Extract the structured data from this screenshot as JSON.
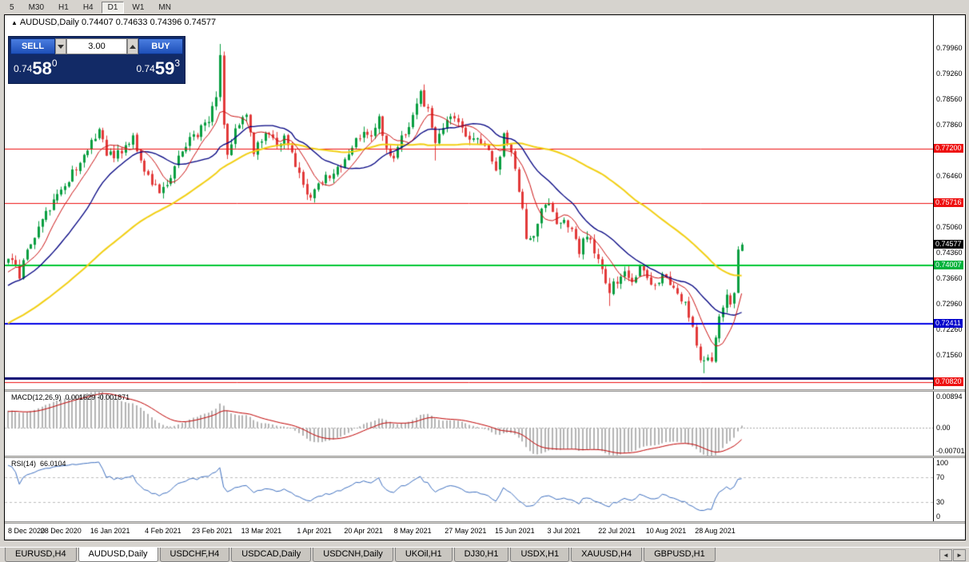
{
  "toolbar": {
    "periods": [
      {
        "label": "5",
        "active": false
      },
      {
        "label": "M30",
        "active": false
      },
      {
        "label": "H1",
        "active": false
      },
      {
        "label": "H4",
        "active": false
      },
      {
        "label": "D1",
        "active": true
      },
      {
        "label": "W1",
        "active": false
      },
      {
        "label": "MN",
        "active": false
      }
    ]
  },
  "chart": {
    "symbol_marker": "▲",
    "title": "AUDUSD,Daily",
    "ohlc": "0.74407 0.74633 0.74396 0.74577"
  },
  "trade_widget": {
    "sell_label": "SELL",
    "buy_label": "BUY",
    "lot_value": "3.00",
    "sell_price": {
      "main": "0.74",
      "big": "58",
      "sup": "0"
    },
    "buy_price": {
      "main": "0.74",
      "big": "59",
      "sup": "3"
    }
  },
  "price_axis": {
    "labels": [
      "0.79960",
      "0.79260",
      "0.78560",
      "0.77860",
      "0.77160",
      "0.76460",
      "0.75760",
      "0.75060",
      "0.74360",
      "0.73660",
      "0.72960",
      "0.72260",
      "0.71560"
    ],
    "markers": [
      {
        "text": "0.77200",
        "price": 0.772,
        "bg": "#ee1111",
        "fg": "#ffffff"
      },
      {
        "text": "0.75716",
        "price": 0.75716,
        "bg": "#ee1111",
        "fg": "#ffffff"
      },
      {
        "text": "0.74577",
        "price": 0.74577,
        "bg": "#000000",
        "fg": "#ffffff",
        "current": true
      },
      {
        "text": "0.74007",
        "price": 0.74007,
        "bg": "#00b33c",
        "fg": "#ffffff"
      },
      {
        "text": "0.72411",
        "price": 0.72411,
        "bg": "#0000cc",
        "fg": "#ffffff"
      },
      {
        "text": "0.70820",
        "price": 0.7082,
        "bg": "#ee1111",
        "fg": "#ffffff"
      }
    ]
  },
  "hlines": [
    {
      "price": 0.772,
      "color": "#ee1111",
      "width": 1
    },
    {
      "price": 0.75716,
      "color": "#ee1111",
      "width": 1
    },
    {
      "price": 0.74007,
      "color": "#00c832",
      "width": 2
    },
    {
      "price": 0.72411,
      "color": "#0000e6",
      "width": 2
    },
    {
      "price": 0.7092,
      "color": "#000070",
      "width": 3
    },
    {
      "price": 0.7082,
      "color": "#ee1111",
      "width": 1
    }
  ],
  "macd": {
    "label": "MACD(12,26,9)",
    "values": "0.001629 -0.001871",
    "axis": [
      "0.00894",
      "0.00",
      "-0.00701"
    ]
  },
  "rsi": {
    "label": "RSI(14)",
    "value": "66.0104",
    "axis": [
      "100",
      "70",
      "30",
      "0"
    ]
  },
  "time_axis": {
    "labels": [
      {
        "text": "8 Dec 2020",
        "day": 0
      },
      {
        "text": "28 Dec 2020",
        "day": 14
      },
      {
        "text": "16 Jan 2021",
        "day": 27
      },
      {
        "text": "4 Feb 2021",
        "day": 41
      },
      {
        "text": "23 Feb 2021",
        "day": 54
      },
      {
        "text": "13 Mar 2021",
        "day": 67
      },
      {
        "text": "1 Apr 2021",
        "day": 81
      },
      {
        "text": "20 Apr 2021",
        "day": 94
      },
      {
        "text": "8 May 2021",
        "day": 107
      },
      {
        "text": "27 May 2021",
        "day": 121
      },
      {
        "text": "15 Jun 2021",
        "day": 134
      },
      {
        "text": "3 Jul 2021",
        "day": 147
      },
      {
        "text": "22 Jul 2021",
        "day": 161
      },
      {
        "text": "10 Aug 2021",
        "day": 174
      },
      {
        "text": "28 Aug 2021",
        "day": 187
      }
    ]
  },
  "tabbar": {
    "left_arrow": "◄",
    "right_arrow": "►"
  },
  "tabs": [
    {
      "label": "EURUSD,H4",
      "active": false
    },
    {
      "label": "AUDUSD,Daily",
      "active": true
    },
    {
      "label": "USDCHF,H4",
      "active": false
    },
    {
      "label": "USDCAD,Daily",
      "active": false
    },
    {
      "label": "USDCNH,Daily",
      "active": false
    },
    {
      "label": "UKOil,H1",
      "active": false
    },
    {
      "label": "DJ30,H1",
      "active": false
    },
    {
      "label": "USDX,H1",
      "active": false
    },
    {
      "label": "XAUUSD,H4",
      "active": false
    },
    {
      "label": "GBPUSD,H1",
      "active": false
    }
  ],
  "chart_data": {
    "type": "candlestick",
    "symbol": "AUDUSD",
    "timeframe": "Daily",
    "last_candle_ohlc": {
      "open": 0.74407,
      "high": 0.74633,
      "low": 0.74396,
      "close": 0.74577
    },
    "up_color": "#089e40",
    "down_color": "#e23a3a",
    "macd_hist_color": "#b4b4b4",
    "macd_signal_color": "#c00000",
    "rsi_color": "#3d6fc0",
    "seed": 20210903,
    "noise": 0.0011,
    "wick": 0.0016,
    "prehistory_anchors": [
      [
        -60,
        0.704
      ],
      [
        -45,
        0.7128
      ],
      [
        -30,
        0.7235
      ],
      [
        -15,
        0.7312
      ],
      [
        -5,
        0.7368
      ],
      [
        -1,
        0.7408
      ]
    ],
    "price_anchors": [
      [
        0,
        0.7415
      ],
      [
        2,
        0.7398
      ],
      [
        3,
        0.7372
      ],
      [
        5,
        0.7438
      ],
      [
        8,
        0.7508
      ],
      [
        11,
        0.756
      ],
      [
        14,
        0.7602
      ],
      [
        17,
        0.7658
      ],
      [
        20,
        0.77
      ],
      [
        22,
        0.7748
      ],
      [
        24,
        0.7768
      ],
      [
        26,
        0.7712
      ],
      [
        28,
        0.7698
      ],
      [
        31,
        0.7722
      ],
      [
        33,
        0.7748
      ],
      [
        35,
        0.7682
      ],
      [
        38,
        0.7632
      ],
      [
        40,
        0.7598
      ],
      [
        42,
        0.7612
      ],
      [
        44,
        0.7672
      ],
      [
        47,
        0.7732
      ],
      [
        50,
        0.7762
      ],
      [
        53,
        0.7802
      ],
      [
        55,
        0.7872
      ],
      [
        56,
        0.7985
      ],
      [
        57,
        0.7782
      ],
      [
        58,
        0.7712
      ],
      [
        60,
        0.7772
      ],
      [
        63,
        0.7822
      ],
      [
        65,
        0.7712
      ],
      [
        67,
        0.7742
      ],
      [
        69,
        0.7762
      ],
      [
        71,
        0.7732
      ],
      [
        73,
        0.7756
      ],
      [
        75,
        0.7702
      ],
      [
        77,
        0.7648
      ],
      [
        79,
        0.7592
      ],
      [
        81,
        0.7602
      ],
      [
        83,
        0.7632
      ],
      [
        86,
        0.7652
      ],
      [
        89,
        0.7682
      ],
      [
        91,
        0.7722
      ],
      [
        94,
        0.7772
      ],
      [
        96,
        0.7752
      ],
      [
        98,
        0.7798
      ],
      [
        100,
        0.7718
      ],
      [
        102,
        0.7702
      ],
      [
        104,
        0.7748
      ],
      [
        106,
        0.7782
      ],
      [
        108,
        0.7842
      ],
      [
        109,
        0.7868
      ],
      [
        111,
        0.7822
      ],
      [
        113,
        0.7732
      ],
      [
        115,
        0.7782
      ],
      [
        117,
        0.7812
      ],
      [
        119,
        0.7792
      ],
      [
        121,
        0.7748
      ],
      [
        123,
        0.7738
      ],
      [
        125,
        0.7742
      ],
      [
        127,
        0.7722
      ],
      [
        129,
        0.7662
      ],
      [
        131,
        0.7752
      ],
      [
        133,
        0.7712
      ],
      [
        135,
        0.7612
      ],
      [
        137,
        0.7482
      ],
      [
        139,
        0.7478
      ],
      [
        141,
        0.7562
      ],
      [
        143,
        0.7582
      ],
      [
        145,
        0.7522
      ],
      [
        147,
        0.7528
      ],
      [
        149,
        0.7492
      ],
      [
        151,
        0.7442
      ],
      [
        153,
        0.7488
      ],
      [
        155,
        0.7442
      ],
      [
        157,
        0.7392
      ],
      [
        159,
        0.7332
      ],
      [
        161,
        0.7362
      ],
      [
        163,
        0.7392
      ],
      [
        165,
        0.7352
      ],
      [
        167,
        0.7402
      ],
      [
        169,
        0.7362
      ],
      [
        171,
        0.7346
      ],
      [
        173,
        0.7372
      ],
      [
        175,
        0.7356
      ],
      [
        177,
        0.7322
      ],
      [
        179,
        0.7292
      ],
      [
        181,
        0.7232
      ],
      [
        183,
        0.7152
      ],
      [
        184,
        0.7132
      ],
      [
        186,
        0.7148
      ],
      [
        188,
        0.7252
      ],
      [
        189,
        0.7292
      ],
      [
        190,
        0.7312
      ],
      [
        191,
        0.7302
      ],
      [
        192,
        0.7318
      ],
      [
        193,
        0.7442
      ],
      [
        194,
        0.74577
      ]
    ],
    "forced_candles": [
      {
        "day": 56,
        "high": 0.8007
      },
      {
        "day": 58,
        "low": 0.7692
      },
      {
        "day": 113,
        "low": 0.7688
      },
      {
        "day": 159,
        "low": 0.729
      },
      {
        "day": 184,
        "low": 0.7106
      },
      {
        "day": 194,
        "open": 0.74407,
        "high": 0.74633,
        "low": 0.74396,
        "close": 0.74577
      }
    ],
    "moving_averages": [
      {
        "period": 55,
        "color": "#f2cf13",
        "width": 2
      },
      {
        "period": 20,
        "color": "#000080",
        "width": 1.3
      },
      {
        "period": 8,
        "color": "#cc1111",
        "width": 1
      }
    ]
  }
}
